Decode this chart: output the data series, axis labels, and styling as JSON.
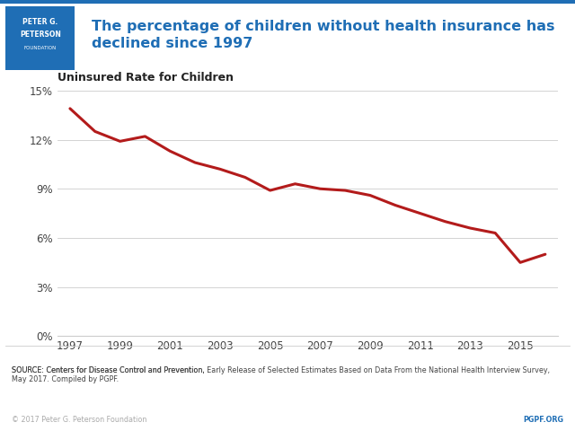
{
  "years": [
    1997,
    1998,
    1999,
    2000,
    2001,
    2002,
    2003,
    2004,
    2005,
    2006,
    2007,
    2008,
    2009,
    2010,
    2011,
    2012,
    2013,
    2014,
    2015,
    2016
  ],
  "values": [
    13.9,
    12.5,
    11.9,
    12.2,
    11.3,
    10.6,
    10.2,
    9.7,
    8.9,
    9.3,
    9.0,
    8.9,
    8.6,
    8.0,
    7.5,
    7.0,
    6.6,
    6.3,
    4.5,
    5.0
  ],
  "line_color": "#b31b1b",
  "line_width": 2.2,
  "chart_title": "Uninsured Rate for Children",
  "header_title": "The percentage of children without health insurance has\ndeclined since 1997",
  "header_title_color": "#1f6eb5",
  "header_bg_color": "#ffffff",
  "yticks": [
    0,
    3,
    6,
    9,
    12,
    15
  ],
  "ytick_labels": [
    "0%",
    "3%",
    "6%",
    "9%",
    "12%",
    "15%"
  ],
  "xtick_years": [
    1997,
    1999,
    2001,
    2003,
    2005,
    2007,
    2009,
    2011,
    2013,
    2015
  ],
  "ylim": [
    0,
    15
  ],
  "xlim": [
    1996.5,
    2016.5
  ],
  "source_text_normal": "SOURCE: Centers for Disease Control and Prevention, ",
  "source_text_italic": "Early Release of Selected Estimates Based on Data From the National Health Interview Survey,",
  "source_text_normal2": "\nMay 2017. Compiled by PGPF.",
  "copyright_text": "© 2017 Peter G. Peterson Foundation",
  "pgpf_text": "PGPF.ORG",
  "pgpf_color": "#1f6eb5",
  "background_color": "#ffffff",
  "plot_bg_color": "#ffffff",
  "header_line_color": "#1f6eb5",
  "logo_box_color": "#1f6eb5"
}
